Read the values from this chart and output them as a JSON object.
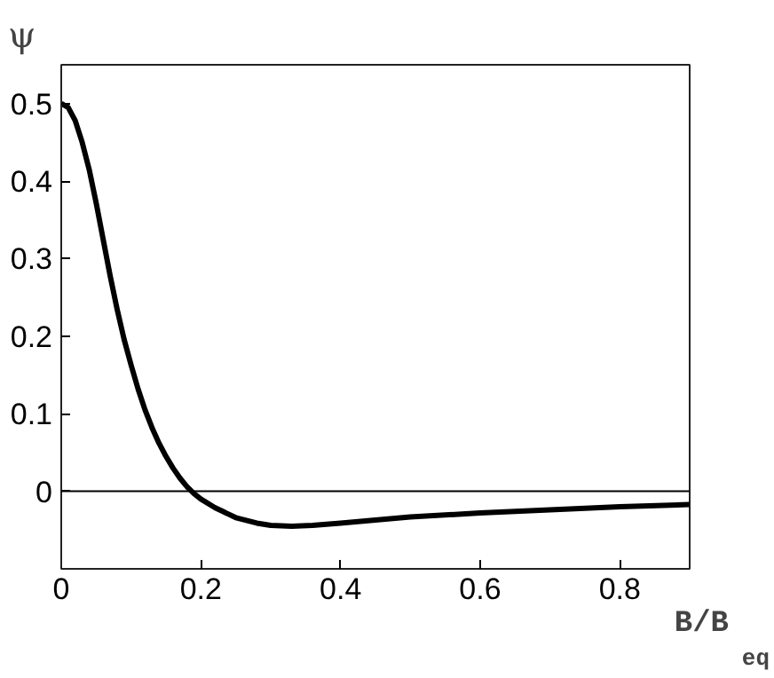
{
  "chart_data": {
    "type": "line",
    "xlabel": "B/B$_{eq}$",
    "ylabel": "ψ",
    "x": [
      0,
      0.01,
      0.02,
      0.03,
      0.04,
      0.05,
      0.06,
      0.07,
      0.08,
      0.09,
      0.1,
      0.11,
      0.12,
      0.13,
      0.14,
      0.15,
      0.16,
      0.17,
      0.18,
      0.19,
      0.2,
      0.22,
      0.25,
      0.28,
      0.3,
      0.33,
      0.36,
      0.4,
      0.45,
      0.5,
      0.6,
      0.7,
      0.8,
      0.9
    ],
    "series": [
      {
        "color": "#000000",
        "values": [
          0.5,
          0.495,
          0.478,
          0.45,
          0.415,
          0.372,
          0.325,
          0.278,
          0.235,
          0.196,
          0.163,
          0.132,
          0.105,
          0.082,
          0.062,
          0.045,
          0.03,
          0.017,
          0.006,
          -0.003,
          -0.01,
          -0.021,
          -0.034,
          -0.041,
          -0.044,
          -0.045,
          -0.044,
          -0.041,
          -0.037,
          -0.033,
          -0.028,
          -0.024,
          -0.02,
          -0.017
        ]
      }
    ],
    "xlim": [
      0,
      0.9
    ],
    "ylim": [
      -0.1,
      0.55
    ],
    "xticks": [
      0,
      0.2,
      0.4,
      0.6,
      0.8
    ],
    "yticks": [
      0,
      0.1,
      0.2,
      0.3,
      0.4,
      0.5
    ],
    "ref_lines": [
      {
        "axis": "y",
        "value": 0,
        "color": "#000000"
      }
    ],
    "grid": false,
    "marker": "none",
    "line_style": "solid"
  }
}
